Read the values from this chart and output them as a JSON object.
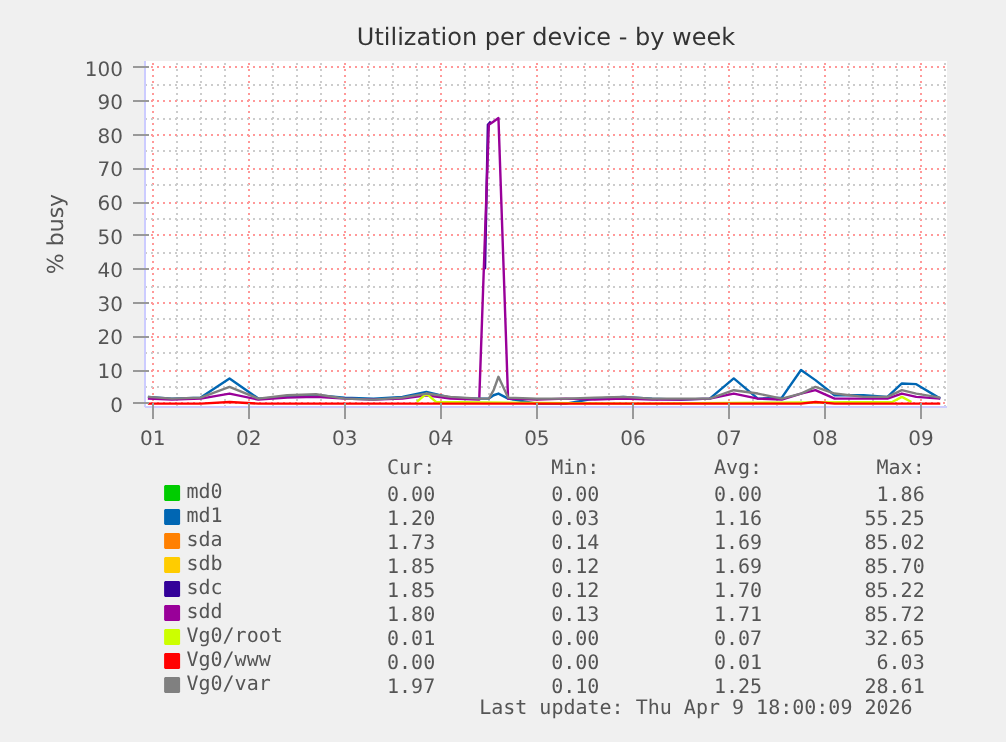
{
  "chart_data": {
    "type": "line",
    "title": "Utilization per device - by week",
    "ylabel": "% busy",
    "x": [
      0.95,
      1.2,
      1.5,
      1.8,
      2.1,
      2.4,
      2.7,
      3.0,
      3.3,
      3.6,
      3.85,
      4.1,
      4.4,
      4.5,
      4.55,
      4.6,
      4.7,
      5.0,
      5.3,
      5.6,
      5.9,
      6.2,
      6.5,
      6.8,
      7.05,
      7.3,
      7.55,
      7.75,
      7.9,
      8.1,
      8.4,
      8.65,
      8.8,
      8.95,
      9.2
    ],
    "xlim": [
      0.92,
      9.27
    ],
    "xticks": [
      {
        "value": 1,
        "label": "01"
      },
      {
        "value": 2,
        "label": "02"
      },
      {
        "value": 3,
        "label": "03"
      },
      {
        "value": 4,
        "label": "04"
      },
      {
        "value": 5,
        "label": "05"
      },
      {
        "value": 6,
        "label": "06"
      },
      {
        "value": 7,
        "label": "07"
      },
      {
        "value": 8,
        "label": "08"
      },
      {
        "value": 9,
        "label": "09"
      }
    ],
    "ylim": [
      -1,
      102
    ],
    "yticks": [
      0,
      10,
      20,
      30,
      40,
      50,
      60,
      70,
      80,
      90,
      100
    ],
    "grid": true,
    "legend": "bottom",
    "series": [
      {
        "name": "md0",
        "color": "#00cc00",
        "values": [
          null,
          null,
          null,
          null,
          null,
          null,
          null,
          null,
          null,
          null,
          null,
          null,
          null,
          null,
          null,
          null,
          null,
          null,
          null,
          null,
          null,
          null,
          null,
          null,
          null,
          null,
          null,
          null,
          null,
          null,
          null,
          null,
          null,
          null,
          null
        ]
      },
      {
        "name": "md1",
        "color": "#0066b3",
        "values": [
          2,
          1.5,
          1.8,
          7.5,
          1.5,
          2,
          2.5,
          1.8,
          1.5,
          2,
          3.5,
          1.8,
          1.5,
          1.5,
          2.5,
          3,
          1.5,
          null,
          null,
          1.5,
          2,
          1.5,
          1.2,
          1.5,
          7.5,
          1.5,
          1.8,
          10,
          7,
          2.5,
          2.5,
          2,
          6,
          5.8,
          1.5
        ]
      },
      {
        "name": "sda",
        "color": "#ff8000",
        "values": [
          null,
          null,
          null,
          null,
          null,
          null,
          null,
          null,
          null,
          null,
          null,
          null,
          null,
          null,
          null,
          null,
          null,
          null,
          null,
          null,
          null,
          null,
          null,
          null,
          null,
          null,
          null,
          null,
          null,
          null,
          null,
          null,
          null,
          null,
          null
        ]
      },
      {
        "name": "sdb",
        "color": "#ffcc00",
        "values": [
          null,
          null,
          null,
          null,
          null,
          null,
          null,
          null,
          null,
          null,
          null,
          null,
          null,
          null,
          null,
          null,
          null,
          null,
          null,
          null,
          null,
          null,
          null,
          null,
          null,
          null,
          null,
          null,
          null,
          null,
          null,
          null,
          null,
          null,
          null
        ]
      },
      {
        "name": "sdc",
        "color": "#330099",
        "x": [
          4.46,
          4.49,
          4.52
        ],
        "values": [
          40,
          83,
          84
        ]
      },
      {
        "name": "sdd",
        "color": "#990099",
        "values": [
          1.5,
          1.2,
          1.5,
          3,
          1.2,
          1.8,
          2,
          1.5,
          1.2,
          1.5,
          2.5,
          1.5,
          1.2,
          83,
          84,
          85,
          1.5,
          1.2,
          1.5,
          1.2,
          1.5,
          1.2,
          1.2,
          1.5,
          3,
          1.5,
          1.2,
          3,
          4,
          1.5,
          1.5,
          1.5,
          3,
          2,
          1.5
        ]
      },
      {
        "name": "Vg0/root",
        "color": "#ccff00",
        "x": [
          3.75,
          3.85,
          3.95,
          6.0,
          8.7,
          8.8,
          8.9
        ],
        "values": [
          0.5,
          3,
          0.5,
          null,
          0.5,
          2,
          0.5
        ]
      },
      {
        "name": "Vg0/www",
        "color": "#ff0000",
        "values": [
          0,
          0,
          0,
          0.5,
          0,
          0,
          0,
          0,
          0,
          0,
          0,
          0,
          0,
          0,
          0,
          0,
          0,
          0,
          0,
          0,
          0,
          0,
          0,
          0,
          0,
          0,
          0,
          0,
          0.5,
          0,
          0,
          0,
          0,
          0,
          0
        ]
      },
      {
        "name": "Vg0/var",
        "color": "#808080",
        "values": [
          2,
          1.5,
          1.8,
          5,
          1.5,
          2.5,
          2.8,
          1.5,
          1.2,
          1.8,
          3,
          2,
          1.5,
          1.5,
          4,
          8,
          1.8,
          1.5,
          1.5,
          1.8,
          2,
          1.5,
          1.5,
          1.5,
          4,
          3,
          1.5,
          3,
          5,
          3,
          2,
          2,
          4,
          3,
          1.8
        ]
      }
    ],
    "annotations": [
      "Cur:",
      "Min:",
      "Avg:",
      "Max:",
      "0.00",
      "0.00",
      "0.00",
      "1.86",
      "1.20",
      "0.03",
      "1.16",
      "55.25",
      "1.73",
      "0.14",
      "1.69",
      "85.02",
      "1.85",
      "0.12",
      "1.69",
      "85.70",
      "1.85",
      "0.12",
      "1.70",
      "85.22",
      "1.80",
      "0.13",
      "1.71",
      "85.72",
      "0.01",
      "0.00",
      "0.07",
      "32.65",
      "0.00",
      "0.00",
      "0.01",
      "6.03",
      "1.97",
      "0.10",
      "1.25",
      "28.61",
      "Last update: Thu Apr  9 18:00:09 2026"
    ]
  }
}
